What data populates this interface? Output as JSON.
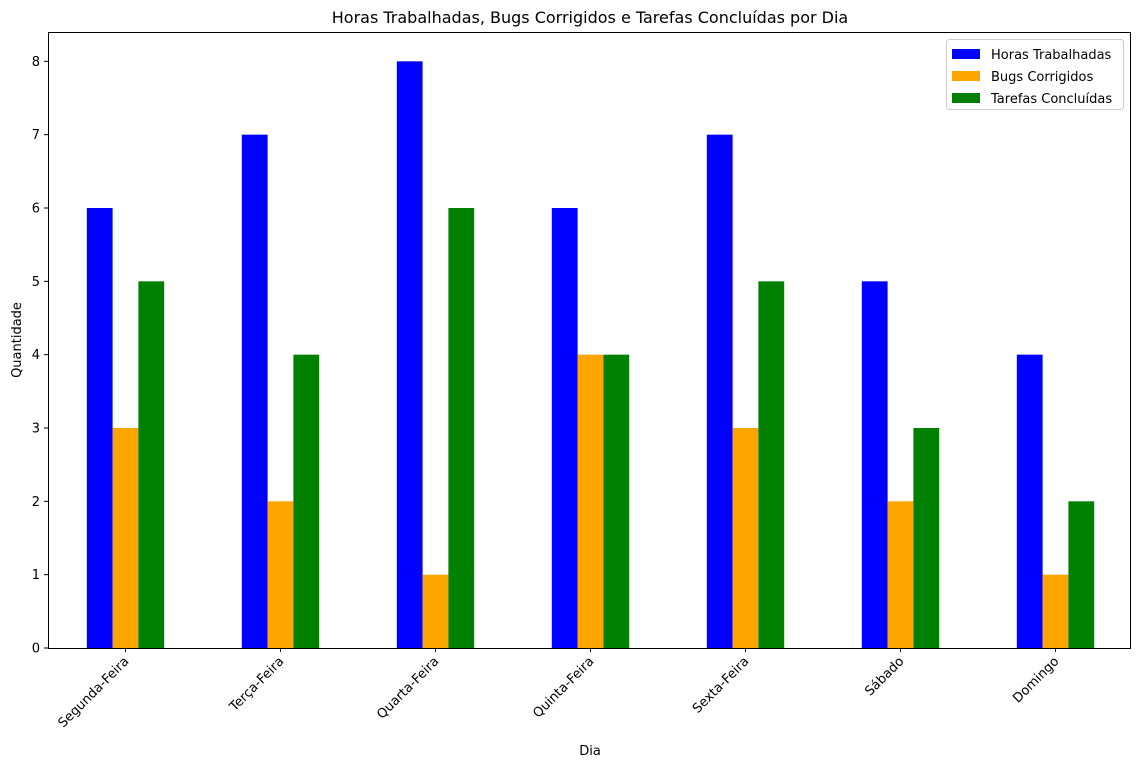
{
  "chart_data": {
    "type": "bar",
    "title": "Horas Trabalhadas, Bugs Corrigidos e Tarefas Concluídas por Dia",
    "xlabel": "Dia",
    "ylabel": "Quantidade",
    "categories": [
      "Segunda-Feira",
      "Terça-Feira",
      "Quarta-Feira",
      "Quinta-Feira",
      "Sexta-Feira",
      "Sábado",
      "Domingo"
    ],
    "series": [
      {
        "name": "Horas Trabalhadas",
        "color": "#0000ff",
        "values": [
          6,
          7,
          8,
          6,
          7,
          5,
          4
        ]
      },
      {
        "name": "Bugs Corrigidos",
        "color": "#ffa500",
        "values": [
          3,
          2,
          1,
          4,
          3,
          2,
          1
        ]
      },
      {
        "name": "Tarefas Concluídas",
        "color": "#008000",
        "values": [
          5,
          4,
          6,
          4,
          5,
          3,
          2
        ]
      }
    ],
    "ylim": [
      0,
      8.4
    ],
    "yticks": [
      0,
      1,
      2,
      3,
      4,
      5,
      6,
      7,
      8
    ],
    "grid": false,
    "legend_position": "top-right",
    "xtick_rotation": 45
  }
}
